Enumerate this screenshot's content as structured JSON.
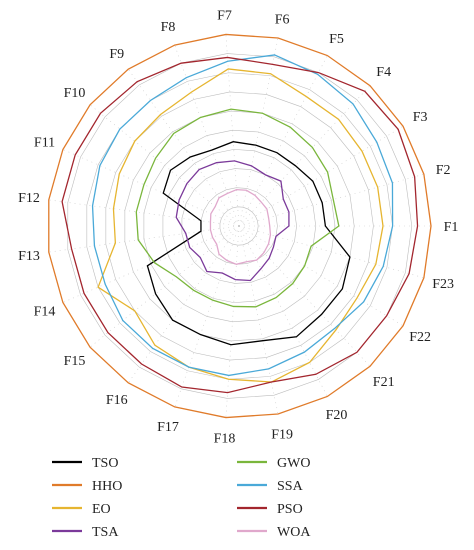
{
  "chart_data": {
    "type": "radar",
    "axes": [
      "F1",
      "F2",
      "F3",
      "F4",
      "F5",
      "F6",
      "F7",
      "F8",
      "F9",
      "F10",
      "F11",
      "F12",
      "F13",
      "F14",
      "F15",
      "F16",
      "F17",
      "F18",
      "F19",
      "F20",
      "F21",
      "F22",
      "F23"
    ],
    "rlim": [
      0,
      10
    ],
    "rings": 10,
    "grid": true,
    "legend_position": "bottom",
    "series": [
      {
        "name": "TSO",
        "color": "#000000",
        "values": [
          4.5,
          4.5,
          4.5,
          4.3,
          4.3,
          4.3,
          4.4,
          4.2,
          4.4,
          4.6,
          4.3,
          2.0,
          2.0,
          5.2,
          5.6,
          6.0,
          6.0,
          6.2,
          6.1,
          6.5,
          6.3,
          6.3,
          6.0
        ]
      },
      {
        "name": "HHO",
        "color": "#e07b2a",
        "values": [
          10,
          10,
          10,
          10,
          10,
          10,
          10,
          10,
          10,
          10,
          10,
          10,
          10,
          10,
          10,
          10,
          10,
          10,
          10,
          10,
          10,
          10,
          10
        ]
      },
      {
        "name": "EO",
        "color": "#e6b530",
        "values": [
          7.5,
          7.5,
          7.5,
          7.6,
          7.6,
          8.1,
          8.2,
          7.4,
          7.1,
          7.0,
          6.8,
          6.6,
          6.5,
          8.0,
          7.0,
          7.6,
          7.8,
          8.0,
          8.3,
          8.0,
          7.4,
          7.2,
          7.4
        ]
      },
      {
        "name": "TSA",
        "color": "#7b3a9a",
        "values": [
          2.6,
          2.7,
          2.7,
          3.2,
          3.0,
          3.2,
          3.4,
          3.5,
          3.6,
          3.5,
          3.4,
          3.3,
          2.8,
          2.8,
          2.6,
          2.9,
          2.6,
          2.8,
          2.9,
          2.5,
          2.3,
          2.1,
          2.0
        ]
      },
      {
        "name": "GWO",
        "color": "#7ab63c",
        "values": [
          5.2,
          5.1,
          5.4,
          5.6,
          5.8,
          6.0,
          6.1,
          6.0,
          5.9,
          5.6,
          5.4,
          5.4,
          5.3,
          4.8,
          4.2,
          4.1,
          4.1,
          4.2,
          4.3,
          4.2,
          4.1,
          4.0,
          3.9
        ]
      },
      {
        "name": "SSA",
        "color": "#4aa9d8",
        "values": [
          8.0,
          8.3,
          8.4,
          8.7,
          8.9,
          9.1,
          8.6,
          8.2,
          8.0,
          8.0,
          7.9,
          7.7,
          7.6,
          7.6,
          7.8,
          7.8,
          7.8,
          7.8,
          7.6,
          7.4,
          7.3,
          7.6,
          7.8
        ]
      },
      {
        "name": "PSO",
        "color": "#a3262e",
        "values": [
          9.3,
          9.5,
          9.7,
          9.6,
          9.0,
          8.6,
          8.8,
          9.0,
          9.2,
          9.3,
          9.3,
          9.3,
          8.8,
          8.8,
          8.8,
          8.8,
          8.9,
          8.7,
          8.3,
          8.7,
          9.0,
          9.0,
          9.2
        ]
      },
      {
        "name": "WOA",
        "color": "#e0a8cc",
        "values": [
          1.6,
          1.6,
          1.7,
          1.7,
          1.8,
          1.9,
          1.9,
          1.8,
          1.8,
          1.6,
          1.6,
          1.5,
          1.5,
          1.5,
          1.5,
          1.8,
          1.9,
          2.0,
          1.9,
          2.0,
          1.9,
          1.8,
          1.7
        ]
      }
    ]
  }
}
